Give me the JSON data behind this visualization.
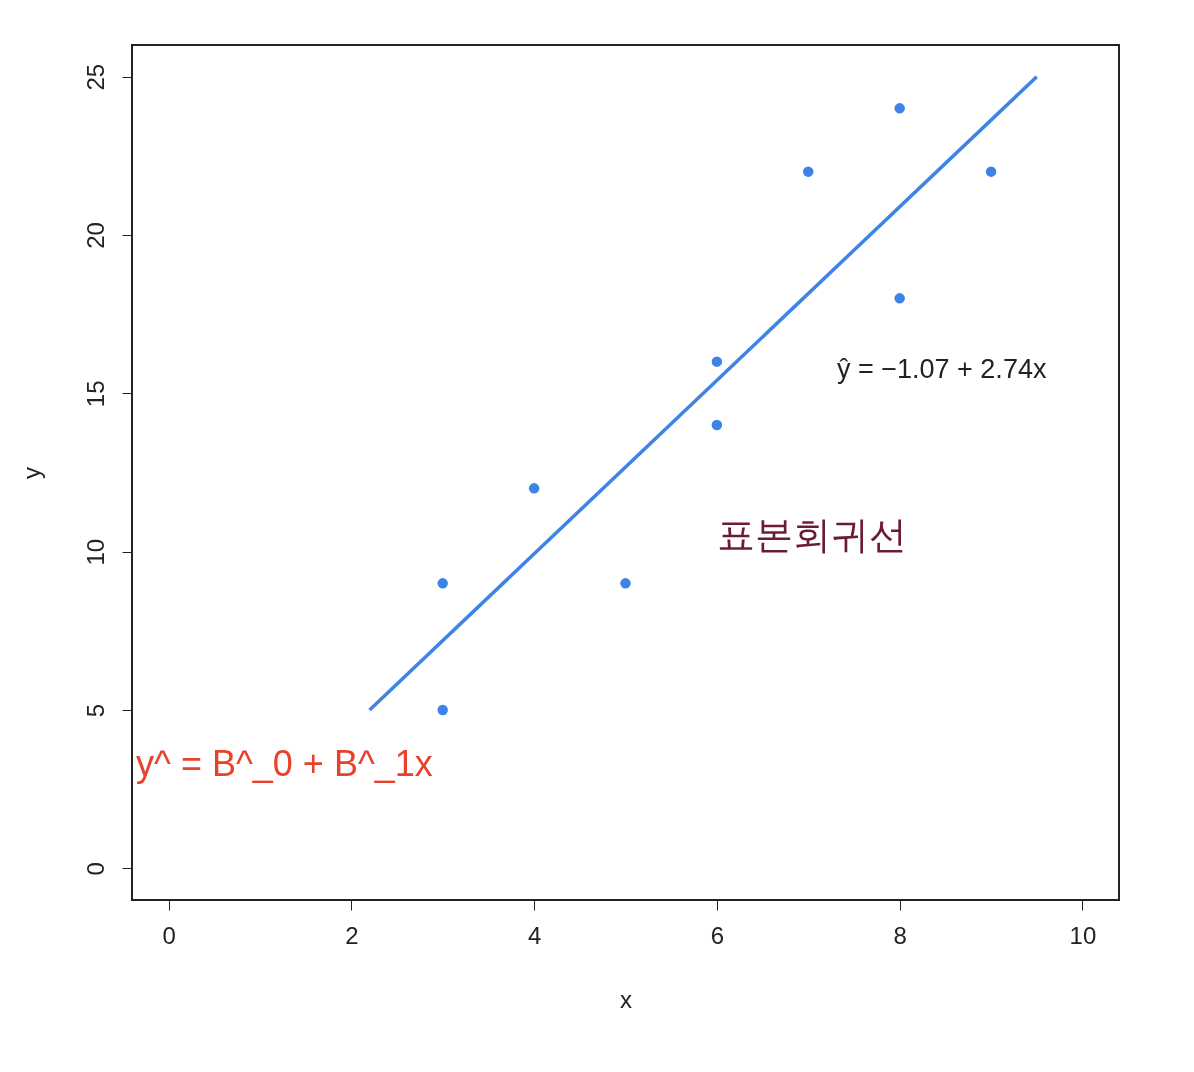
{
  "chart_data": {
    "type": "scatter",
    "xlabel": "x",
    "ylabel": "y",
    "xlim": [
      -0.4,
      10.4
    ],
    "xticks": [
      0,
      2,
      4,
      6,
      8,
      10
    ],
    "ylim": [
      -1,
      26
    ],
    "yticks": [
      0,
      5,
      10,
      15,
      20,
      25
    ],
    "grid": false,
    "series": [
      {
        "color": "#3d84e6",
        "marker": "circle",
        "x": [
          3,
          3,
          4,
          5,
          6,
          6,
          7,
          8,
          8,
          9
        ],
        "values": [
          9,
          5,
          12,
          9,
          16,
          14,
          22,
          24,
          18,
          22
        ]
      },
      {
        "type": "line",
        "color": "#3d84e6",
        "marker": "none",
        "line_style": "solid",
        "x": [
          2.2,
          9.5
        ],
        "values": [
          5,
          25
        ]
      }
    ],
    "annotations": [
      "ŷ = −1.07 + 2.74x",
      "표본회귀선",
      "y^ = B^_0 + B^_1x"
    ]
  }
}
